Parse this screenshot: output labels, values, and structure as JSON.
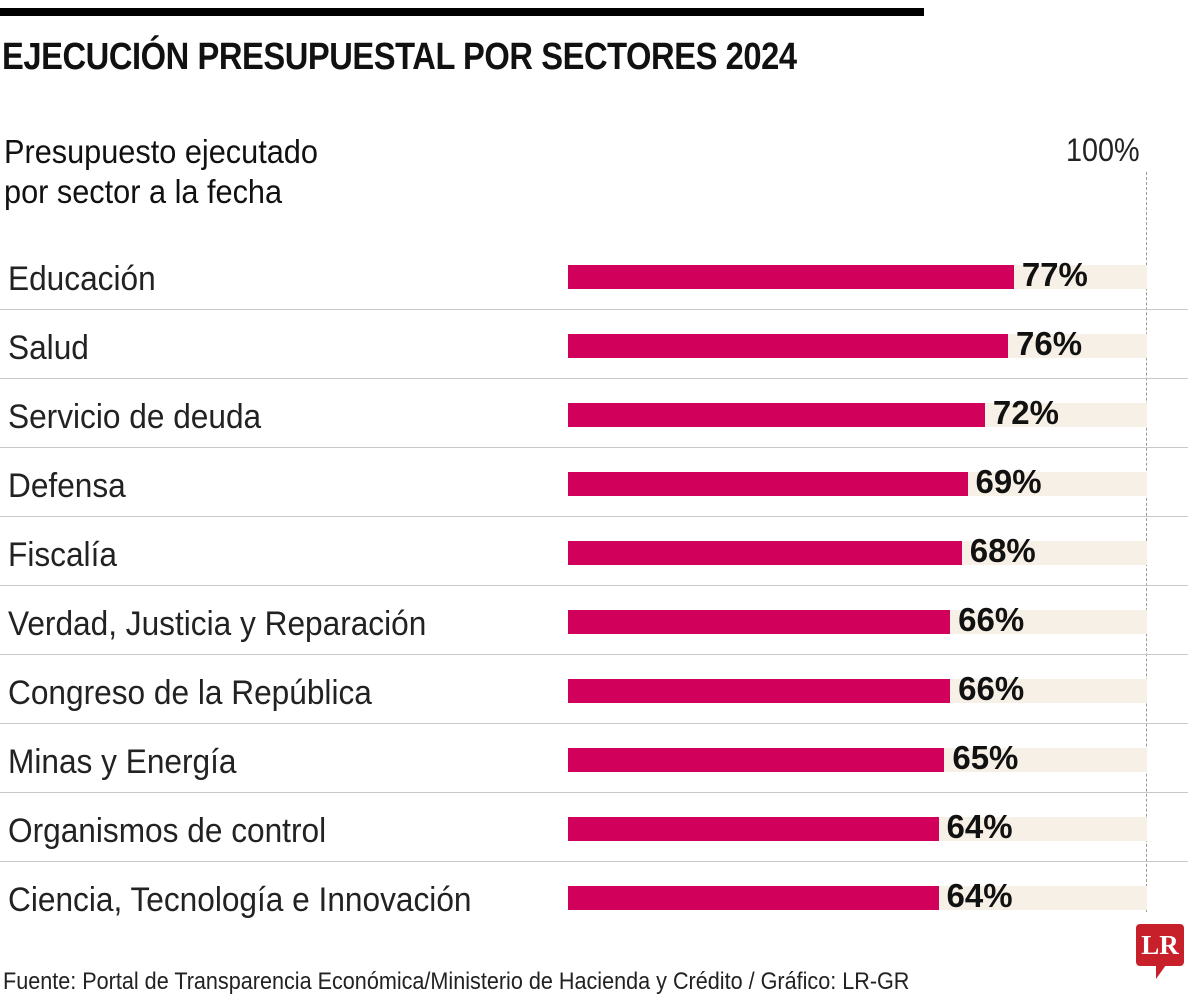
{
  "header": {
    "title": "EJECUCIÓN PRESUPUESTAL POR SECTORES 2024",
    "subtitle_line1": "Presupuesto ejecutado",
    "subtitle_line2": "por sector a la fecha",
    "max_label": "100%"
  },
  "footer": {
    "source": "Fuente: Portal de Transparencia Económica/Ministerio de Hacienda y Crédito / Gráfico: LR-GR",
    "logo_text": "LR"
  },
  "colors": {
    "bar": "#d1005a",
    "track": "#f6f0e6",
    "logo": "#c8202b"
  },
  "chart_data": {
    "type": "bar",
    "orientation": "horizontal",
    "title": "EJECUCIÓN PRESUPUESTAL POR SECTORES 2024",
    "subtitle": "Presupuesto ejecutado por sector a la fecha",
    "xlabel": "",
    "ylabel": "",
    "xlim": [
      0,
      100
    ],
    "reference_line": {
      "value": 100,
      "label": "100%"
    },
    "grid": false,
    "unit": "%",
    "categories": [
      "Educación",
      "Salud",
      "Servicio de deuda",
      "Defensa",
      "Fiscalía",
      "Verdad, Justicia y Reparación",
      "Congreso de la República",
      "Minas y Energía",
      "Organismos de control",
      "Ciencia, Tecnología e Innovación"
    ],
    "values": [
      77,
      76,
      72,
      69,
      68,
      66,
      66,
      65,
      64,
      64
    ],
    "value_labels": [
      "77%",
      "76%",
      "72%",
      "69%",
      "68%",
      "66%",
      "66%",
      "65%",
      "64%",
      "64%"
    ]
  }
}
